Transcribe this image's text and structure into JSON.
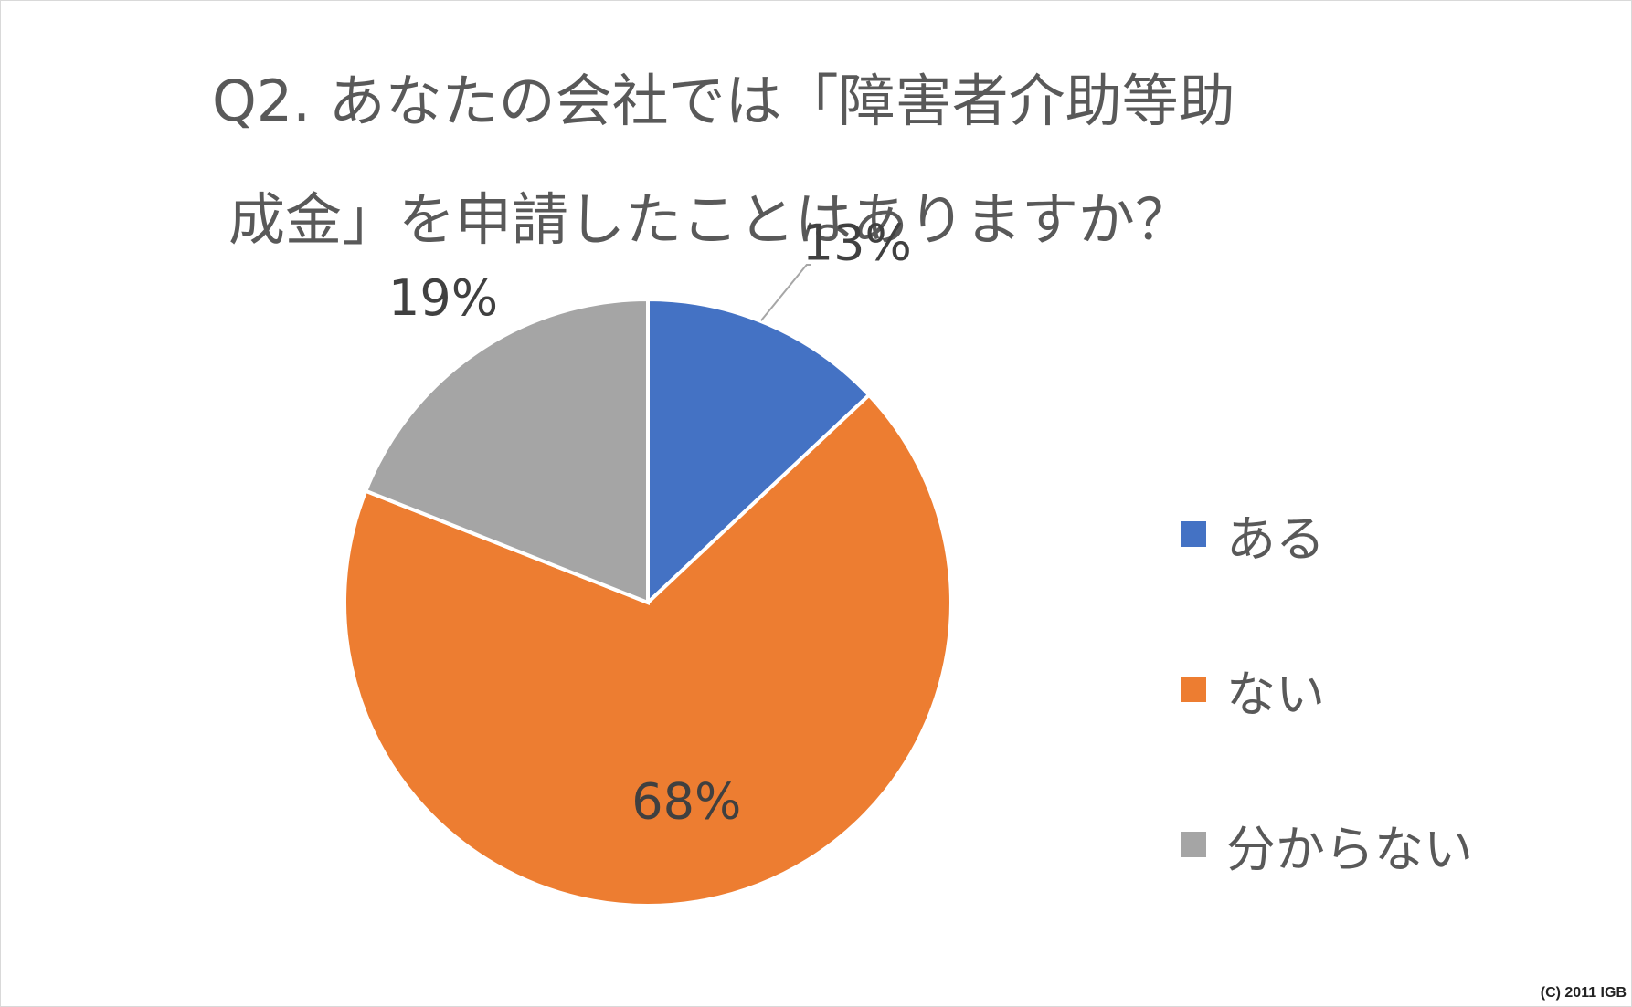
{
  "title_line1": "Q2. あなたの会社では「障害者介助等助",
  "title_line2": "成金」を申請したことはありますか？",
  "chart_data": {
    "type": "pie",
    "title": "Q2. あなたの会社では「障害者介助等助成金」を申請したことはありますか？",
    "categories": [
      "ある",
      "ない",
      "分からない"
    ],
    "values": [
      13,
      68,
      19
    ],
    "data_labels": [
      "13%",
      "68%",
      "19%"
    ],
    "colors": [
      "#4472C4",
      "#ED7D31",
      "#A5A5A5"
    ],
    "legend_position": "right"
  },
  "copyright": "(C) 2011 IGB"
}
